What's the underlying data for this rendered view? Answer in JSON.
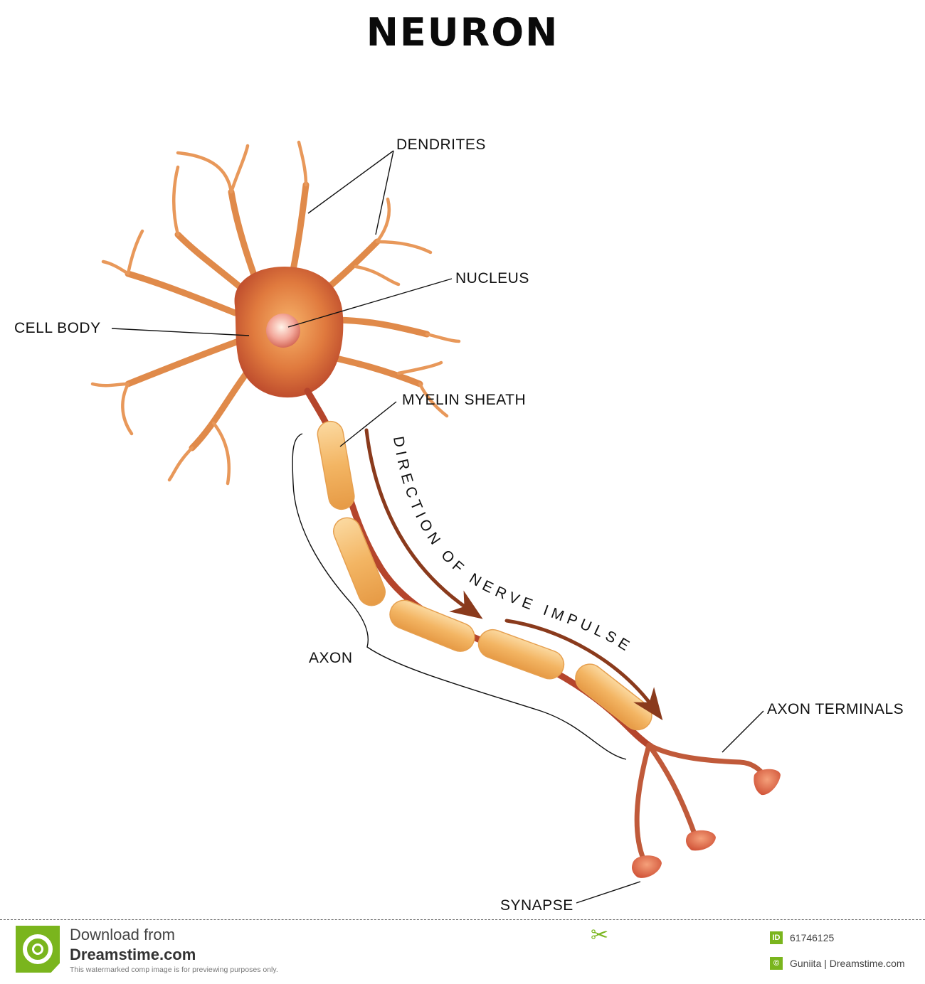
{
  "title": "NEURON",
  "labels": {
    "dendrites": "DENDRITES",
    "nucleus": "NUCLEUS",
    "cell_body": "CELL BODY",
    "myelin_sheath": "MYELIN SHEATH",
    "axon": "AXON",
    "axon_terminals": "AXON TERMINALS",
    "synapse": "SYNAPSE",
    "direction": "DIRECTION OF NERVE IMPULSE"
  },
  "footer": {
    "download_line": "Download from",
    "site": "Dreamstime.com",
    "notice": "This watermarked comp image is for previewing purposes only.",
    "id_badge": "ID",
    "id_value": "61746125",
    "copyright_badge": "©",
    "credit": "Guniita | Dreamstime.com"
  },
  "colors": {
    "dendrite": "#e08a4a",
    "cell_body": "#d96a3a",
    "axon": "#b5452c",
    "myelin": "#f6c178",
    "arrow": "#8a3a1c",
    "brand": "#7ab51d"
  }
}
